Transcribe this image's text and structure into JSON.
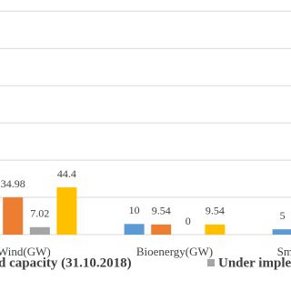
{
  "chart_data": {
    "type": "bar",
    "categories": [
      "Wind(GW)",
      "Bioenergy(GW)",
      "Sm"
    ],
    "series": [
      {
        "color": "#5b9bd5",
        "values": [
          null,
          10,
          5
        ]
      },
      {
        "name": "d capacity (31.10.2018)",
        "color": "#ed7d31",
        "values": [
          34.98,
          9.54,
          null
        ]
      },
      {
        "name": "Under impleme",
        "color": "#a5a5a5",
        "values": [
          7.02,
          0,
          null
        ]
      },
      {
        "color": "#ffc000",
        "values": [
          44.4,
          9.54,
          null
        ]
      }
    ],
    "ylim": [
      0,
      220
    ],
    "yticks": [
      0,
      35,
      70,
      105,
      140,
      175,
      210
    ],
    "grid": true
  }
}
